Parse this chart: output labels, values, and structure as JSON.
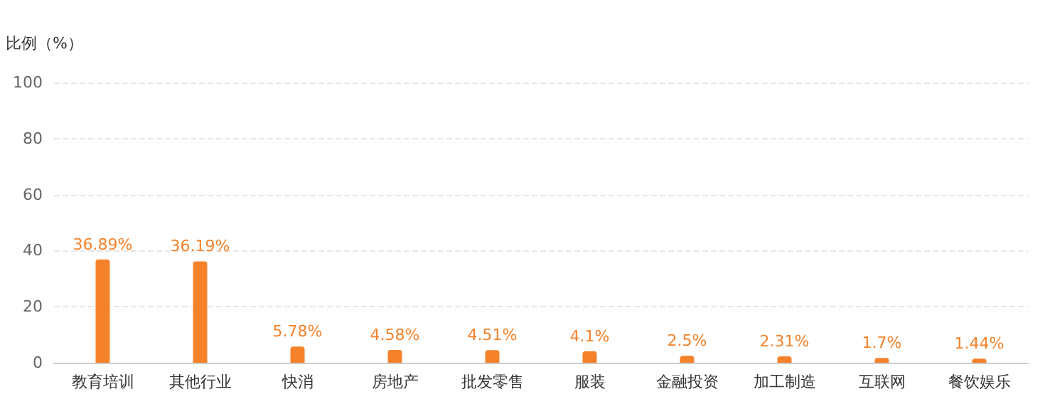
{
  "chart_data": {
    "type": "bar",
    "ylabel": "比例（%）",
    "categories": [
      "教育培训",
      "其他行业",
      "快消",
      "房地产",
      "批发零售",
      "服装",
      "金融投资",
      "加工制造",
      "互联网",
      "餐饮娱乐"
    ],
    "values": [
      36.89,
      36.19,
      5.78,
      4.58,
      4.51,
      4.1,
      2.5,
      2.31,
      1.7,
      1.44
    ],
    "value_labels": [
      "36.89%",
      "36.19%",
      "5.78%",
      "4.58%",
      "4.51%",
      "4.1%",
      "2.5%",
      "2.31%",
      "1.7%",
      "1.44%"
    ],
    "color": "#f5822a",
    "ylim": [
      0,
      100
    ],
    "yticks": [
      0,
      20,
      40,
      60,
      80,
      100
    ],
    "grid": "y"
  }
}
